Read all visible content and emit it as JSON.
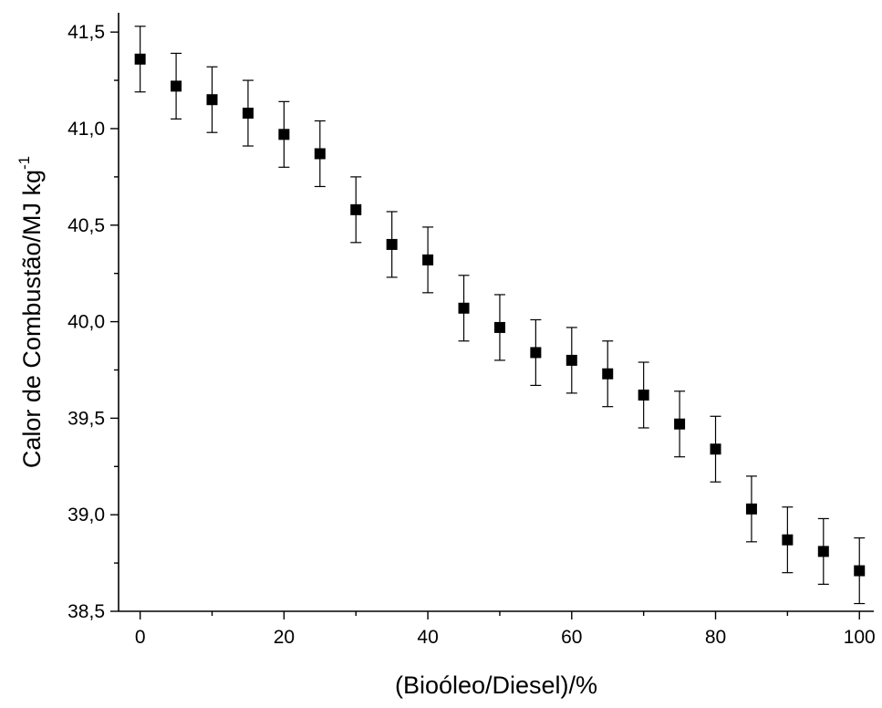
{
  "chart_data": {
    "type": "scatter",
    "title": "",
    "xlabel": "(Bioóleo/Diesel)/%",
    "ylabel_main": "Calor de Combustão/MJ kg",
    "ylabel_sup": "-1",
    "xlim": [
      -3,
      102
    ],
    "ylim": [
      38.5,
      41.6
    ],
    "xticks": [
      0,
      20,
      40,
      60,
      80,
      100
    ],
    "xtick_labels": [
      "0",
      "20",
      "40",
      "60",
      "80",
      "100"
    ],
    "xminor_ticks": [
      10,
      30,
      50,
      70,
      90
    ],
    "yticks": [
      38.5,
      39.0,
      39.5,
      40.0,
      40.5,
      41.0,
      41.5
    ],
    "ytick_labels": [
      "38,5",
      "39,0",
      "39,5",
      "40,0",
      "40,5",
      "41,0",
      "41,5"
    ],
    "yminor_ticks": [
      38.75,
      39.25,
      39.75,
      40.25,
      40.75,
      41.25
    ],
    "grid": false,
    "marker": "square",
    "marker_color": "#000000",
    "series": [
      {
        "x": [
          0,
          5,
          10,
          15,
          20,
          25,
          30,
          35,
          40,
          45,
          50,
          55,
          60,
          65,
          70,
          75,
          80,
          85,
          90,
          95,
          100
        ],
        "y": [
          41.36,
          41.22,
          41.15,
          41.08,
          40.97,
          40.87,
          40.58,
          40.4,
          40.32,
          40.07,
          39.97,
          39.84,
          39.8,
          39.73,
          39.62,
          39.47,
          39.34,
          39.03,
          38.87,
          38.81,
          38.71
        ],
        "error": 0.17
      }
    ]
  }
}
